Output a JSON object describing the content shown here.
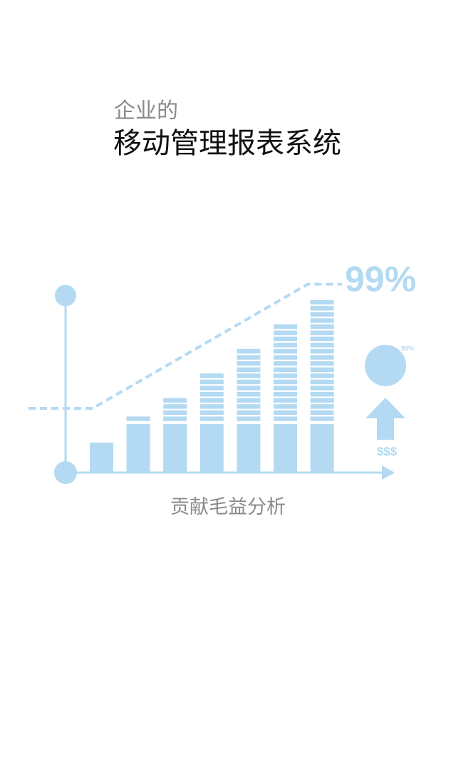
{
  "header": {
    "subtitle": "企业的",
    "title": "移动管理报表系统"
  },
  "illustration": {
    "percent_label": "99%",
    "small_percent_label": "99%",
    "currency_label": "$$$",
    "bars_count": 7,
    "accent_color": "#b3daf2"
  },
  "caption": "贡献毛益分析"
}
